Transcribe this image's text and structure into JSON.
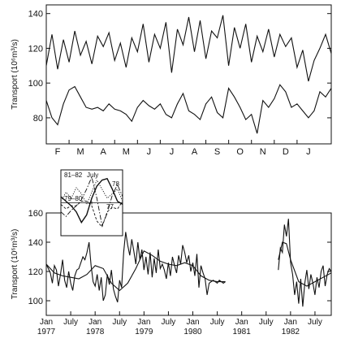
{
  "chart_data": [
    {
      "type": "line",
      "ylabel": "Transport (10⁶m³/s)",
      "ylim": [
        65,
        145
      ],
      "yticks": [
        80,
        100,
        120,
        140
      ],
      "xtick_labels": [
        "F",
        "M",
        "A",
        "M",
        "J",
        "J",
        "A",
        "S",
        "O",
        "N",
        "D",
        "J"
      ],
      "xlim_months": [
        0,
        12.5
      ],
      "series": [
        {
          "x": [
            0,
            0.25,
            0.5,
            0.75,
            1,
            1.25,
            1.5,
            1.75,
            2,
            2.25,
            2.5,
            2.75,
            3,
            3.25,
            3.5,
            3.75,
            4,
            4.25,
            4.5,
            4.75,
            5,
            5.25,
            5.5,
            5.75,
            6,
            6.25,
            6.5,
            6.75,
            7,
            7.25,
            7.5,
            7.75,
            8,
            8.25,
            8.5,
            8.75,
            9,
            9.25,
            9.5,
            9.75,
            10,
            10.25,
            10.5,
            10.75,
            11,
            11.25,
            11.5,
            11.75,
            12,
            12.25,
            12.5
          ],
          "values": [
            110,
            128,
            108,
            125,
            112,
            130,
            116,
            124,
            111,
            127,
            121,
            129,
            113,
            123,
            109,
            126,
            118,
            134,
            112,
            128,
            120,
            135,
            106,
            131,
            122,
            138,
            118,
            136,
            114,
            130,
            126,
            139,
            110,
            132,
            120,
            134,
            112,
            127,
            118,
            131,
            115,
            128,
            121,
            126,
            109,
            119,
            101,
            113,
            120,
            128,
            117
          ]
        },
        {
          "x": [
            0,
            0.25,
            0.5,
            0.75,
            1,
            1.25,
            1.5,
            1.75,
            2,
            2.25,
            2.5,
            2.75,
            3,
            3.25,
            3.5,
            3.75,
            4,
            4.25,
            4.5,
            4.75,
            5,
            5.25,
            5.5,
            5.75,
            6,
            6.25,
            6.5,
            6.75,
            7,
            7.25,
            7.5,
            7.75,
            8,
            8.25,
            8.5,
            8.75,
            9,
            9.25,
            9.5,
            9.75,
            10,
            10.25,
            10.5,
            10.75,
            11,
            11.25,
            11.5,
            11.75,
            12,
            12.25,
            12.5
          ],
          "values": [
            90,
            80,
            76,
            88,
            96,
            98,
            92,
            86,
            85,
            86,
            84,
            88,
            85,
            84,
            82,
            78,
            86,
            90,
            87,
            85,
            88,
            82,
            80,
            88,
            94,
            84,
            82,
            79,
            88,
            92,
            83,
            80,
            97,
            92,
            86,
            79,
            82,
            71,
            90,
            86,
            91,
            99,
            95,
            86,
            88,
            84,
            80,
            84,
            95,
            92,
            97
          ]
        }
      ]
    },
    {
      "type": "line",
      "ylabel": "Transport (10⁶m³/s)",
      "ylim": [
        90,
        160
      ],
      "yticks": [
        100,
        120,
        140,
        160
      ],
      "xtick_labels": [
        {
          "top": "Jan",
          "bottom": "1977",
          "t": 0
        },
        {
          "top": "July",
          "bottom": "",
          "t": 6
        },
        {
          "top": "Jan",
          "bottom": "1978",
          "t": 12
        },
        {
          "top": "July",
          "bottom": "",
          "t": 18
        },
        {
          "top": "Jan",
          "bottom": "1979",
          "t": 24
        },
        {
          "top": "July",
          "bottom": "",
          "t": 30
        },
        {
          "top": "Jan",
          "bottom": "1980",
          "t": 36
        },
        {
          "top": "July",
          "bottom": "",
          "t": 42
        },
        {
          "top": "Jan",
          "bottom": "1981",
          "t": 48
        },
        {
          "top": "July",
          "bottom": "",
          "t": 54
        },
        {
          "top": "Jan",
          "bottom": "1982",
          "t": 60
        },
        {
          "top": "July",
          "bottom": "",
          "t": 66
        }
      ],
      "xlim_months": [
        0,
        70
      ],
      "series": [
        {
          "segments": [
            {
              "x": [
                0,
                0.5,
                1,
                1.5,
                2,
                2.5,
                3,
                3.5,
                4,
                4.5,
                5,
                5.5,
                6,
                6.5,
                7,
                7.5,
                8,
                8.5,
                9,
                9.5,
                10,
                10.5,
                11,
                11.5,
                12,
                12.5,
                13,
                13.5,
                14,
                14.5,
                15,
                15.5,
                16,
                16.5,
                17,
                17.5,
                18,
                18.5,
                19,
                19.5,
                20,
                20.5,
                21,
                21.5,
                22,
                22.5,
                23,
                23.5,
                24,
                24.5,
                25,
                25.5,
                26,
                26.5,
                27,
                27.5,
                28,
                28.5,
                29,
                29.5,
                30,
                30.5,
                31,
                31.5,
                32,
                32.5,
                33,
                33.5,
                34,
                34.5,
                35,
                35.5,
                36,
                36.5,
                37,
                37.5,
                38,
                38.5,
                39,
                39.5,
                40,
                40.5,
                41,
                41.5,
                42,
                42.5,
                43,
                43.5,
                44
              ],
              "values": [
                125,
                122,
                119,
                112,
                124,
                121,
                110,
                118,
                128,
                114,
                109,
                120,
                112,
                107,
                117,
                121,
                122,
                126,
                130,
                128,
                133,
                140,
                124,
                113,
                110,
                118,
                107,
                116,
                100,
                104,
                118,
                111,
                121,
                108,
                103,
                99,
                114,
                109,
                133,
                147,
                138,
                131,
                142,
                134,
                125,
                140,
                128,
                135,
                121,
                130,
                118,
                133,
                116,
                129,
                119,
                135,
                122,
                125,
                121,
                115,
                126,
                117,
                130,
                124,
                119,
                131,
                125,
                138,
                133,
                126,
                131,
                120,
                126,
                117,
                132,
                109,
                124,
                119,
                115,
                104,
                112,
                113,
                114,
                113,
                112,
                114,
                113,
                112,
                113
              ]
            },
            {
              "x": [
                57,
                57.5,
                58,
                58.5,
                59,
                59.5,
                60,
                60.5,
                61,
                61.5,
                62,
                62.5,
                63,
                63.5,
                64,
                64.5,
                65,
                65.5,
                66,
                66.5,
                67,
                67.5,
                68,
                68.5,
                69,
                69.5,
                70
              ],
              "values": [
                121,
                136,
                133,
                152,
                144,
                156,
                126,
                118,
                104,
                113,
                98,
                115,
                96,
                112,
                121,
                108,
                118,
                112,
                104,
                116,
                109,
                120,
                124,
                110,
                118,
                122,
                120
              ]
            }
          ]
        },
        {
          "segments": [
            {
              "x": [
                0,
                2,
                4,
                6,
                8,
                10,
                12,
                14,
                16,
                18,
                20,
                22,
                24,
                26,
                28,
                30,
                32,
                34,
                36,
                38,
                40,
                42,
                44
              ],
              "values": [
                125,
                119,
                117,
                116,
                115,
                118,
                124,
                122,
                112,
                107,
                112,
                122,
                134,
                131,
                127,
                125,
                124,
                126,
                124,
                117,
                114,
                113,
                113
              ]
            },
            {
              "x": [
                57,
                58,
                59,
                60,
                62,
                64,
                66,
                68,
                70
              ],
              "values": [
                128,
                140,
                139,
                128,
                113,
                110,
                113,
                116,
                119
              ]
            }
          ]
        }
      ]
    },
    {
      "type": "line",
      "ylim": [
        -1,
        1
      ],
      "xlim": [
        0,
        12
      ],
      "annotations": [
        "81–82",
        "July",
        "78",
        "79–80",
        "77"
      ],
      "series": [
        {
          "label_ref": "78",
          "values": [
            0.2,
            0.05,
            -0.1,
            -0.3,
            -0.65,
            -0.4,
            0.15,
            0.55,
            0.75,
            0.8,
            0.45,
            0.05,
            -0.05
          ]
        },
        {
          "label_ref": "81–82",
          "values": [
            -0.3,
            -0.45,
            -0.25,
            -0.1,
            0.1,
            0.45,
            0.85,
            0.15,
            -0.75,
            -0.35,
            0.25,
            0.6,
            0.2
          ]
        },
        {
          "label_ref": "79–80",
          "values": [
            0.05,
            0.35,
            0.15,
            0.5,
            0.3,
            -0.05,
            0.35,
            0.75,
            0.45,
            0.15,
            0.3,
            0.45,
            0.05
          ]
        },
        {
          "label_ref": "77",
          "values": [
            -0.05,
            -0.2,
            -0.1,
            -0.1,
            0.05,
            0.05,
            -0.1,
            -0.6,
            -0.8,
            -0.3,
            -0.15,
            -0.2,
            0.05
          ]
        }
      ]
    }
  ]
}
